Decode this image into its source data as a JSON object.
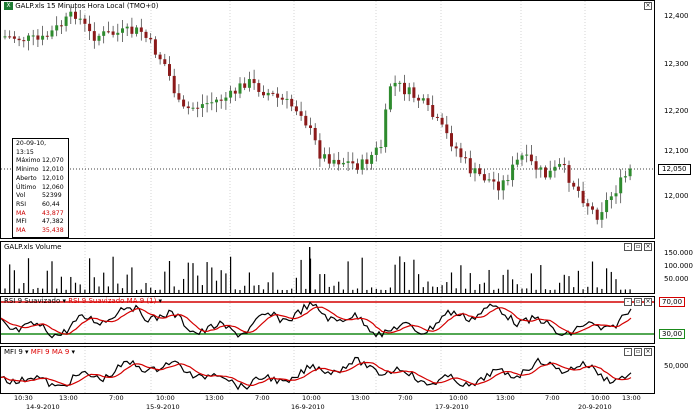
{
  "price_pane": {
    "title": "GALP.xls 15 Minutos Hora Local (TMO+0)",
    "axis_labels": [
      "12,400",
      "12,300",
      "12,200",
      "12,100",
      "12,000"
    ],
    "last_tag": "12,050",
    "info": {
      "header": "20-09-10, 13:15",
      "rows": [
        {
          "k": "Máximo",
          "v": "12,070"
        },
        {
          "k": "Mínimo",
          "v": "12,010"
        },
        {
          "k": "Aberto",
          "v": "12,010"
        },
        {
          "k": "Último",
          "v": "12,060"
        },
        {
          "k": "Vol",
          "v": "52399"
        },
        {
          "k": "RSI",
          "v": "60,44"
        },
        {
          "k": "MA",
          "v": "43,877",
          "red": true
        },
        {
          "k": "MFI",
          "v": "47,382"
        },
        {
          "k": "MA",
          "v": "35,438",
          "red": true
        }
      ]
    }
  },
  "volume_pane": {
    "title": "GALP.xls Volume",
    "axis_labels": [
      "150.000",
      "100.000",
      "50.000"
    ]
  },
  "rsi_pane": {
    "title_main": "RSI 9 Suavizado",
    "title_ma": "RSI 9 Suavizado MA 9 (1)",
    "axis_labels": [
      "70,00",
      "30,00"
    ],
    "overbought_color": "#d40000",
    "oversold_color": "#1a8a1a"
  },
  "mfi_pane": {
    "title_main": "MFI 9",
    "title_ma": "MFI 9 MA 9",
    "axis_labels": [
      "50,000"
    ]
  },
  "x_axis": {
    "time_labels": [
      "10:30",
      "13:00",
      "7:00",
      "10:00",
      "13:00",
      "7:00",
      "10:00",
      "13:00",
      "7:00",
      "10:00",
      "13:00",
      "7:00",
      "10:00",
      "13:00"
    ],
    "date_labels": [
      "14-9-2010",
      "15-9-2010",
      "16-9-2010",
      "17-9-2010",
      "20-9-2010"
    ]
  },
  "colors": {
    "bull": "#2e8b2e",
    "bear": "#8b1a1a",
    "ma_line": "#d40000"
  },
  "icons": [
    "excel-icon",
    "minimize-icon",
    "maximize-icon",
    "close-icon"
  ]
}
